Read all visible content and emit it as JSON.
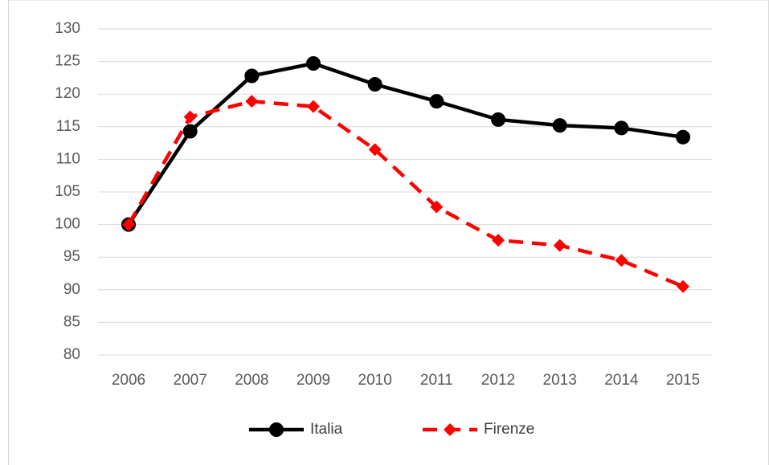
{
  "chart_data": {
    "type": "line",
    "categories": [
      "2006",
      "2007",
      "2008",
      "2009",
      "2010",
      "2011",
      "2012",
      "2013",
      "2014",
      "2015"
    ],
    "series": [
      {
        "name": "Italia",
        "color": "#000000",
        "line_style": "solid",
        "marker": "circle",
        "values": [
          100,
          114.3,
          122.8,
          124.7,
          121.5,
          118.9,
          116.1,
          115.2,
          114.8,
          113.4
        ]
      },
      {
        "name": "Firenze",
        "color": "#ff0000",
        "line_style": "dashed",
        "marker": "diamond",
        "values": [
          100,
          116.5,
          118.9,
          118.1,
          111.5,
          102.7,
          97.6,
          96.8,
          94.5,
          90.5
        ]
      }
    ],
    "ylim": [
      80,
      130
    ],
    "yticks": [
      80,
      85,
      90,
      95,
      100,
      105,
      110,
      115,
      120,
      125,
      130
    ],
    "grid": true,
    "legend": "bottom"
  }
}
